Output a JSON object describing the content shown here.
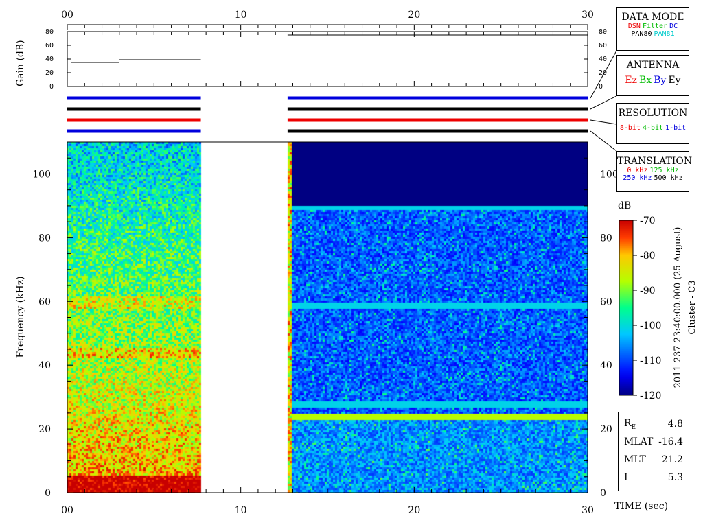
{
  "chart_data": [
    {
      "type": "line",
      "panel": "gain",
      "ylabel": "Gain (dB)",
      "ylim": [
        0,
        80
      ],
      "yticks": [
        "80",
        "60",
        "40",
        "20",
        "0"
      ],
      "xlim": [
        0,
        30
      ],
      "xticks": [
        "00",
        "10",
        "20",
        "30"
      ],
      "segments": [
        {
          "x": [
            0.2,
            3.0
          ],
          "y": 35
        },
        {
          "x": [
            3.0,
            7.7
          ],
          "y": 39
        },
        {
          "x": [
            12.7,
            30
          ],
          "y": 75
        }
      ]
    },
    {
      "type": "mode_bars",
      "panel": "modes",
      "rows": [
        {
          "name": "DATA MODE",
          "spans": [
            {
              "x": [
                0,
                7.7
              ],
              "color": "#0000dd"
            },
            {
              "x": [
                12.7,
                30
              ],
              "color": "#0000dd"
            }
          ]
        },
        {
          "name": "ANTENNA",
          "spans": [
            {
              "x": [
                0,
                7.7
              ],
              "color": "#000000"
            },
            {
              "x": [
                12.7,
                30
              ],
              "color": "#000000"
            }
          ]
        },
        {
          "name": "RESOLUTION",
          "spans": [
            {
              "x": [
                0,
                7.7
              ],
              "color": "#ee0000"
            },
            {
              "x": [
                12.7,
                30
              ],
              "color": "#ee0000"
            }
          ]
        },
        {
          "name": "TRANSLATION",
          "spans": [
            {
              "x": [
                0,
                7.7
              ],
              "color": "#0000dd"
            },
            {
              "x": [
                12.7,
                30
              ],
              "color": "#000000"
            }
          ]
        }
      ]
    },
    {
      "type": "heatmap",
      "panel": "spectrogram",
      "xlabel": "TIME (sec)",
      "ylabel": "Frequency (kHz)",
      "xlim": [
        0,
        30
      ],
      "ylim": [
        0,
        110
      ],
      "xticks": [
        "00",
        "10",
        "20",
        "30"
      ],
      "yticks": [
        "0",
        "20",
        "40",
        "60",
        "80",
        "100"
      ],
      "colorbar": {
        "label": "dB",
        "range": [
          -120,
          -70
        ],
        "ticks": [
          "-70",
          "-80",
          "-90",
          "-100",
          "-110",
          "-120"
        ]
      },
      "data_intervals": [
        {
          "x": [
            0,
            7.7
          ],
          "character": "intense broadband emission, strongest below 5 kHz and near 60 kHz"
        },
        {
          "x": [
            12.7,
            30
          ],
          "character": "weak background with narrow lines near 24, 28, 59 and 90 kHz, empty above 90 kHz"
        }
      ],
      "lines_khz": [
        24,
        28,
        59,
        90
      ]
    }
  ],
  "legend_boxes": {
    "data_mode": {
      "title": "DATA MODE",
      "row1": [
        {
          "text": "DSN",
          "color": "#ee0000"
        },
        {
          "text": "Filter",
          "color": "#00bb00"
        },
        {
          "text": "DC",
          "color": "#0000dd"
        }
      ],
      "row2": [
        {
          "text": "PAN80",
          "color": "#000000"
        },
        {
          "text": "PAN81",
          "color": "#00cccc"
        }
      ]
    },
    "antenna": {
      "title": "ANTENNA",
      "items": [
        {
          "text": "Ez",
          "color": "#ee0000"
        },
        {
          "text": "Bx",
          "color": "#00bb00"
        },
        {
          "text": "By",
          "color": "#0000dd"
        },
        {
          "text": "Ey",
          "color": "#000000"
        }
      ]
    },
    "resolution": {
      "title": "RESOLUTION",
      "items": [
        {
          "text": "8-bit",
          "color": "#ee0000"
        },
        {
          "text": "4-bit",
          "color": "#00bb00"
        },
        {
          "text": "1-bit",
          "color": "#0000dd"
        }
      ]
    },
    "translation": {
      "title": "TRANSLATION",
      "row1": [
        {
          "text": "0 kHz",
          "color": "#ee0000"
        },
        {
          "text": "125 kHz",
          "color": "#00bb00"
        }
      ],
      "row2": [
        {
          "text": "250 kHz",
          "color": "#0000dd"
        },
        {
          "text": "500 kHz",
          "color": "#000000"
        }
      ]
    }
  },
  "side_label": {
    "line1": "2011 237 23:40:00.000 (25 August)",
    "line2": "Cluster - C3"
  },
  "parameters": [
    {
      "name": "R",
      "sub": "E",
      "value": "4.8"
    },
    {
      "name": "MLAT",
      "sub": "",
      "value": "-16.4"
    },
    {
      "name": "MLT",
      "sub": "",
      "value": "21.2"
    },
    {
      "name": "L",
      "sub": "",
      "value": "5.3"
    }
  ]
}
